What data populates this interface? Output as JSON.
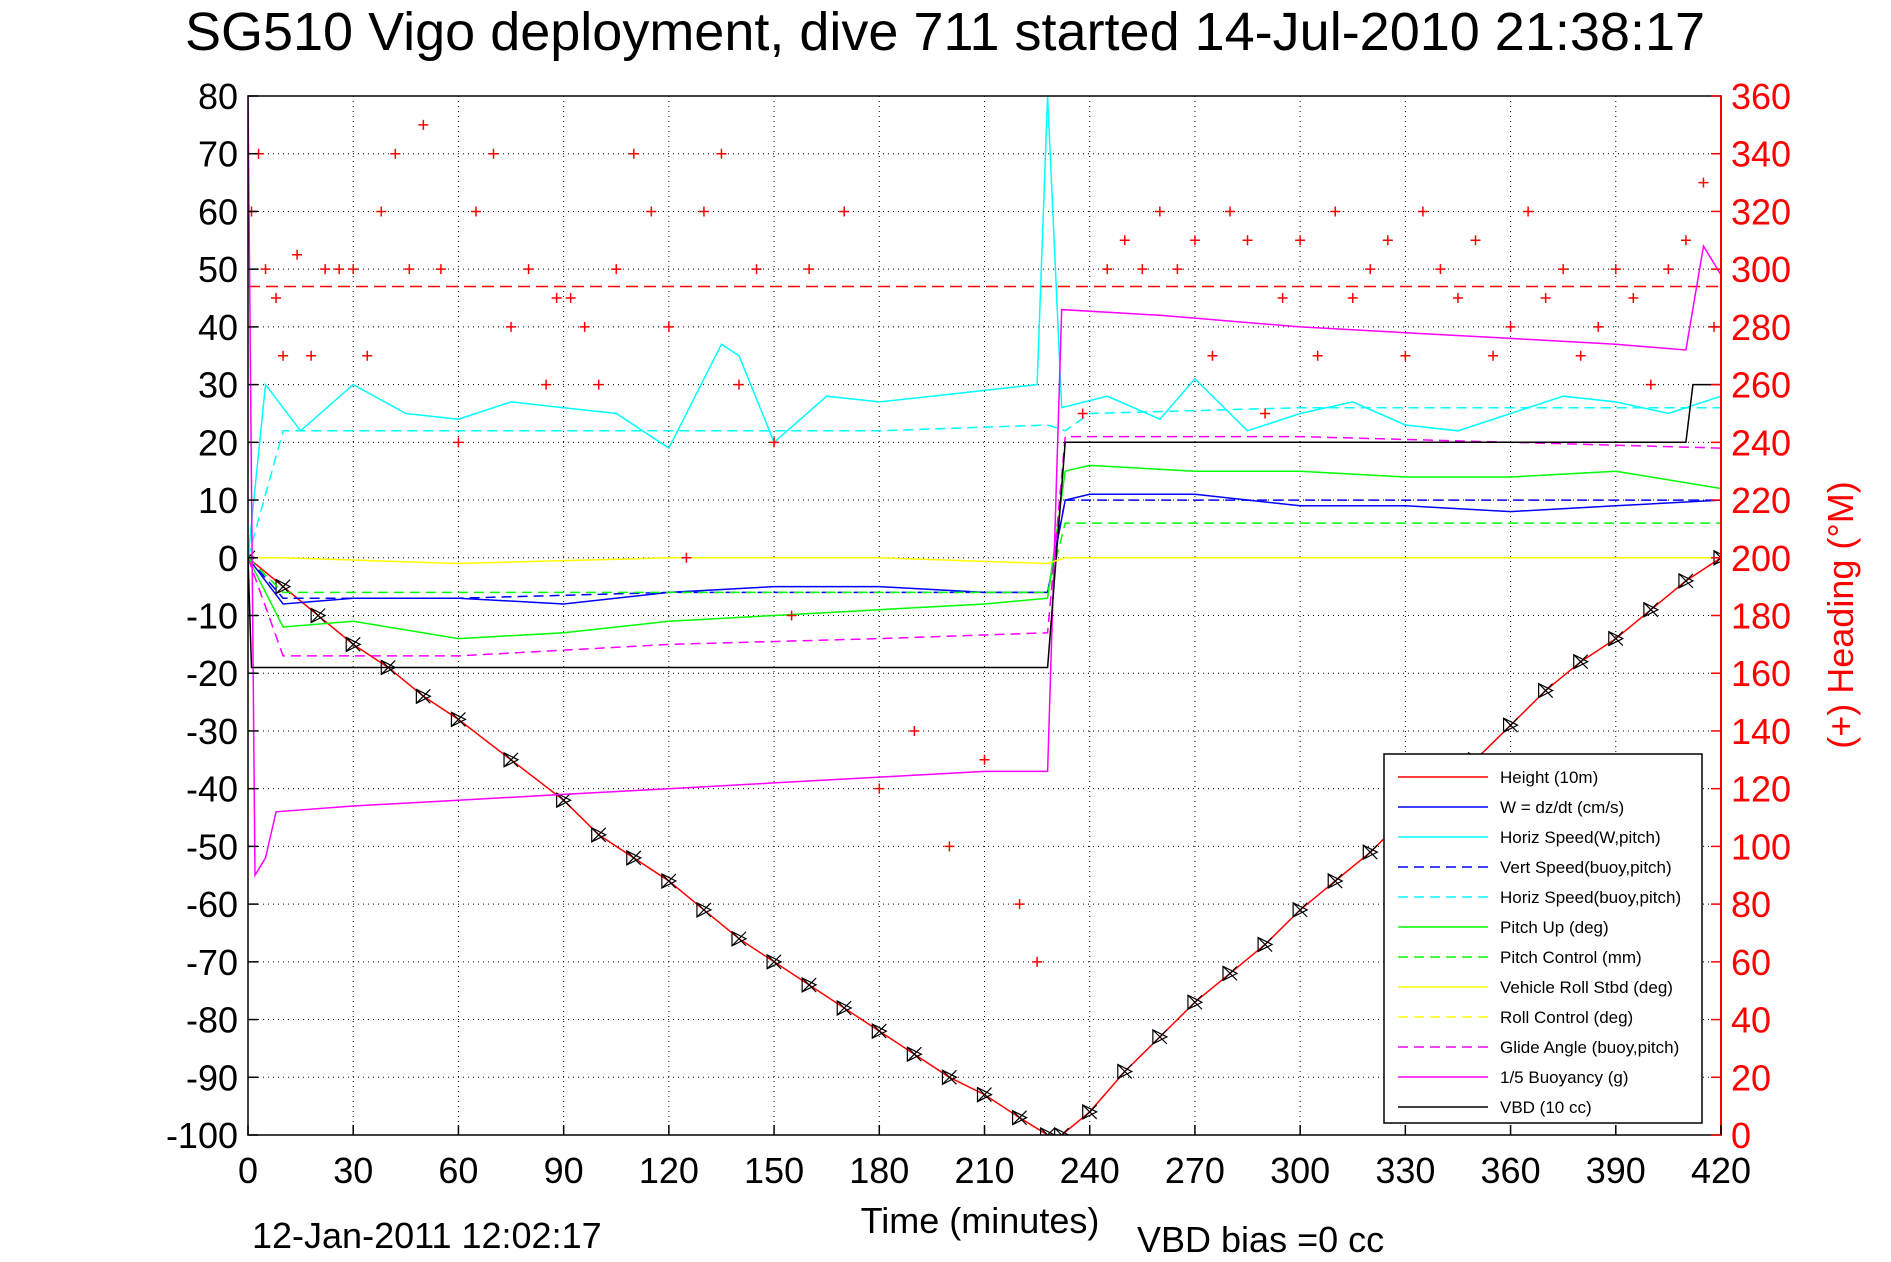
{
  "chart_data": {
    "type": "line",
    "title": "SG510 Vigo deployment, dive 711 started 14-Jul-2010 21:38:17",
    "xlabel": "Time (minutes)",
    "ylabel_right": "(+) Heading (°M)",
    "xlim": [
      0,
      420
    ],
    "ylim": [
      -100,
      80
    ],
    "ylim_right": [
      0,
      360
    ],
    "x_ticks": [
      "0",
      "30",
      "60",
      "90",
      "120",
      "150",
      "180",
      "210",
      "240",
      "270",
      "300",
      "330",
      "360",
      "390",
      "420"
    ],
    "y_ticks_left": [
      "80",
      "70",
      "60",
      "50",
      "40",
      "30",
      "20",
      "10",
      "0",
      "-10",
      "-20",
      "-30",
      "-40",
      "-50",
      "-60",
      "-70",
      "-80",
      "-90",
      "-100"
    ],
    "y_ticks_right": [
      "360",
      "340",
      "320",
      "300",
      "280",
      "260",
      "240",
      "220",
      "200",
      "180",
      "160",
      "140",
      "120",
      "100",
      "80",
      "60",
      "40",
      "20",
      "0"
    ],
    "footer_date": "12-Jan-2011 12:02:17",
    "footer_vbd": "VBD bias =0 cc",
    "legend_position": "lower-right",
    "legend": [
      {
        "label": "Height (10m)",
        "color": "#ff0000",
        "dash": "solid"
      },
      {
        "label": "W = dz/dt (cm/s)",
        "color": "#0000ff",
        "dash": "solid"
      },
      {
        "label": "Horiz Speed(W,pitch)",
        "color": "#00ffff",
        "dash": "solid"
      },
      {
        "label": "Vert Speed(buoy,pitch)",
        "color": "#0000ff",
        "dash": "dashed"
      },
      {
        "label": "Horiz Speed(buoy,pitch)",
        "color": "#00ffff",
        "dash": "dashed"
      },
      {
        "label": "Pitch Up (deg)",
        "color": "#00ff00",
        "dash": "solid"
      },
      {
        "label": "Pitch Control (mm)",
        "color": "#00ff00",
        "dash": "dashed"
      },
      {
        "label": "Vehicle Roll Stbd (deg)",
        "color": "#ffff00",
        "dash": "solid"
      },
      {
        "label": "Roll Control (deg)",
        "color": "#ffff00",
        "dash": "dashed"
      },
      {
        "label": "Glide Angle (buoy,pitch)",
        "color": "#ff00ff",
        "dash": "dashed"
      },
      {
        "label": "1/5 Buoyancy (g)",
        "color": "#ff00ff",
        "dash": "solid"
      },
      {
        "label": "VBD (10 cc)",
        "color": "#000000",
        "dash": "solid"
      }
    ],
    "series": [
      {
        "name": "Height (10m)",
        "color": "#ff0000",
        "x": [
          0,
          10,
          20,
          30,
          40,
          50,
          60,
          75,
          90,
          100,
          110,
          120,
          130,
          140,
          150,
          160,
          170,
          180,
          190,
          200,
          210,
          220,
          228,
          232,
          240,
          250,
          260,
          270,
          280,
          290,
          300,
          310,
          320,
          330,
          340,
          350,
          360,
          370,
          380,
          390,
          400,
          410,
          420
        ],
        "y": [
          0,
          -5,
          -10,
          -15,
          -19,
          -24,
          -28,
          -35,
          -42,
          -48,
          -52,
          -56,
          -61,
          -66,
          -70,
          -74,
          -78,
          -82,
          -86,
          -90,
          -93,
          -97,
          -100,
          -100,
          -96,
          -89,
          -83,
          -77,
          -72,
          -67,
          -61,
          -56,
          -51,
          -45,
          -40,
          -35,
          -29,
          -23,
          -18,
          -14,
          -9,
          -4,
          0
        ]
      },
      {
        "name": "W = dz/dt (cm/s)",
        "color": "#0000ff",
        "x": [
          0,
          10,
          30,
          60,
          90,
          120,
          150,
          180,
          210,
          228,
          233,
          240,
          270,
          300,
          330,
          360,
          390,
          420
        ],
        "y": [
          0,
          -8,
          -7,
          -7,
          -8,
          -6,
          -5,
          -5,
          -6,
          -6,
          10,
          11,
          11,
          9,
          9,
          8,
          9,
          10
        ]
      },
      {
        "name": "Horiz Speed(W,pitch)",
        "color": "#00ffff",
        "x": [
          0,
          5,
          15,
          30,
          45,
          60,
          75,
          90,
          105,
          120,
          135,
          140,
          150,
          165,
          180,
          195,
          210,
          225,
          228,
          232,
          245,
          260,
          270,
          285,
          300,
          315,
          330,
          345,
          360,
          375,
          390,
          405,
          420
        ],
        "y": [
          0,
          30,
          22,
          30,
          25,
          24,
          27,
          26,
          25,
          19,
          37,
          35,
          20,
          28,
          27,
          28,
          29,
          30,
          80,
          26,
          28,
          24,
          31,
          22,
          25,
          27,
          23,
          22,
          25,
          28,
          27,
          25,
          28
        ]
      },
      {
        "name": "Vert Speed(buoy,pitch)",
        "color": "#0000ff",
        "x": [
          0,
          10,
          60,
          120,
          180,
          228,
          233,
          240,
          300,
          360,
          420
        ],
        "y": [
          0,
          -7,
          -7,
          -6,
          -6,
          -6,
          10,
          10,
          10,
          10,
          10
        ]
      },
      {
        "name": "Horiz Speed(buoy,pitch)",
        "color": "#00ffff",
        "x": [
          0,
          10,
          60,
          120,
          180,
          228,
          233,
          240,
          300,
          360,
          420
        ],
        "y": [
          0,
          22,
          22,
          22,
          22,
          23,
          22,
          25,
          26,
          26,
          26
        ]
      },
      {
        "name": "Pitch Up (deg)",
        "color": "#00ff00",
        "x": [
          0,
          10,
          30,
          60,
          90,
          120,
          150,
          180,
          210,
          228,
          233,
          240,
          270,
          300,
          330,
          360,
          390,
          420
        ],
        "y": [
          0,
          -12,
          -11,
          -14,
          -13,
          -11,
          -10,
          -9,
          -8,
          -7,
          15,
          16,
          15,
          15,
          14,
          14,
          15,
          12
        ]
      },
      {
        "name": "Pitch Control (mm)",
        "color": "#00ff00",
        "x": [
          0,
          10,
          60,
          120,
          180,
          228,
          233,
          240,
          300,
          360,
          420
        ],
        "y": [
          0,
          -6,
          -6,
          -6,
          -6,
          -6,
          6,
          6,
          6,
          6,
          6
        ]
      },
      {
        "name": "Glide Angle (buoy,pitch)",
        "color": "#ff00ff",
        "x": [
          0,
          10,
          60,
          120,
          180,
          228,
          233,
          240,
          300,
          360,
          420
        ],
        "y": [
          0,
          -17,
          -17,
          -15,
          -14,
          -13,
          21,
          21,
          21,
          20,
          19
        ]
      },
      {
        "name": "1/5 Buoyancy (g)",
        "color": "#ff00ff",
        "x": [
          0,
          2,
          5,
          8,
          30,
          60,
          90,
          120,
          150,
          180,
          210,
          228,
          232,
          260,
          300,
          330,
          360,
          390,
          410,
          415,
          420
        ],
        "y": [
          80,
          -55,
          -52,
          -44,
          -43,
          -42,
          -41,
          -40,
          -39,
          -38,
          -37,
          -37,
          43,
          42,
          40,
          39,
          38,
          37,
          36,
          54,
          49
        ]
      },
      {
        "name": "VBD (10 cc)",
        "color": "#000000",
        "x": [
          0,
          1,
          5,
          30,
          60,
          90,
          120,
          150,
          180,
          210,
          228,
          233,
          240,
          270,
          300,
          330,
          360,
          390,
          410,
          412,
          420
        ],
        "y": [
          0,
          -19,
          -19,
          -19,
          -19,
          -19,
          -19,
          -19,
          -19,
          -19,
          -19,
          20,
          20,
          20,
          20,
          20,
          20,
          20,
          20,
          30,
          30
        ]
      },
      {
        "name": "Vehicle Roll Stbd (deg)",
        "color": "#ffff00",
        "x": [
          0,
          10,
          60,
          120,
          180,
          228,
          233,
          240,
          300,
          360,
          420
        ],
        "y": [
          0,
          0,
          -1,
          0,
          0,
          -1,
          0,
          0,
          0,
          0,
          0
        ]
      },
      {
        "name": "(+) Heading (°M)",
        "color": "#ff0000",
        "marker": "+",
        "axis": "right",
        "x": [
          1,
          3,
          5,
          8,
          10,
          14,
          18,
          22,
          26,
          30,
          34,
          38,
          42,
          46,
          50,
          55,
          60,
          65,
          70,
          75,
          80,
          85,
          88,
          92,
          96,
          100,
          105,
          110,
          115,
          120,
          125,
          130,
          135,
          140,
          145,
          150,
          155,
          160,
          170,
          180,
          190,
          200,
          210,
          220,
          225,
          238,
          245,
          250,
          255,
          260,
          265,
          270,
          275,
          280,
          285,
          290,
          295,
          300,
          305,
          310,
          315,
          320,
          325,
          330,
          335,
          340,
          345,
          350,
          355,
          360,
          365,
          370,
          375,
          380,
          385,
          390,
          395,
          400,
          405,
          410,
          415,
          418
        ],
        "y": [
          320,
          340,
          300,
          290,
          270,
          305,
          270,
          300,
          300,
          300,
          270,
          320,
          340,
          300,
          350,
          300,
          240,
          320,
          340,
          280,
          300,
          260,
          290,
          290,
          280,
          260,
          300,
          340,
          320,
          280,
          200,
          320,
          340,
          260,
          300,
          240,
          180,
          300,
          320,
          120,
          140,
          100,
          130,
          80,
          60,
          250,
          300,
          310,
          300,
          320,
          300,
          310,
          270,
          320,
          310,
          250,
          290,
          310,
          270,
          320,
          290,
          300,
          310,
          270,
          320,
          300,
          290,
          310,
          270,
          280,
          320,
          290,
          300,
          270,
          280,
          300,
          290,
          260,
          300,
          310,
          330,
          280
        ]
      }
    ],
    "reference_line": {
      "axis": "right",
      "value": 294,
      "color": "#ff0000",
      "dash": "dashed"
    }
  }
}
